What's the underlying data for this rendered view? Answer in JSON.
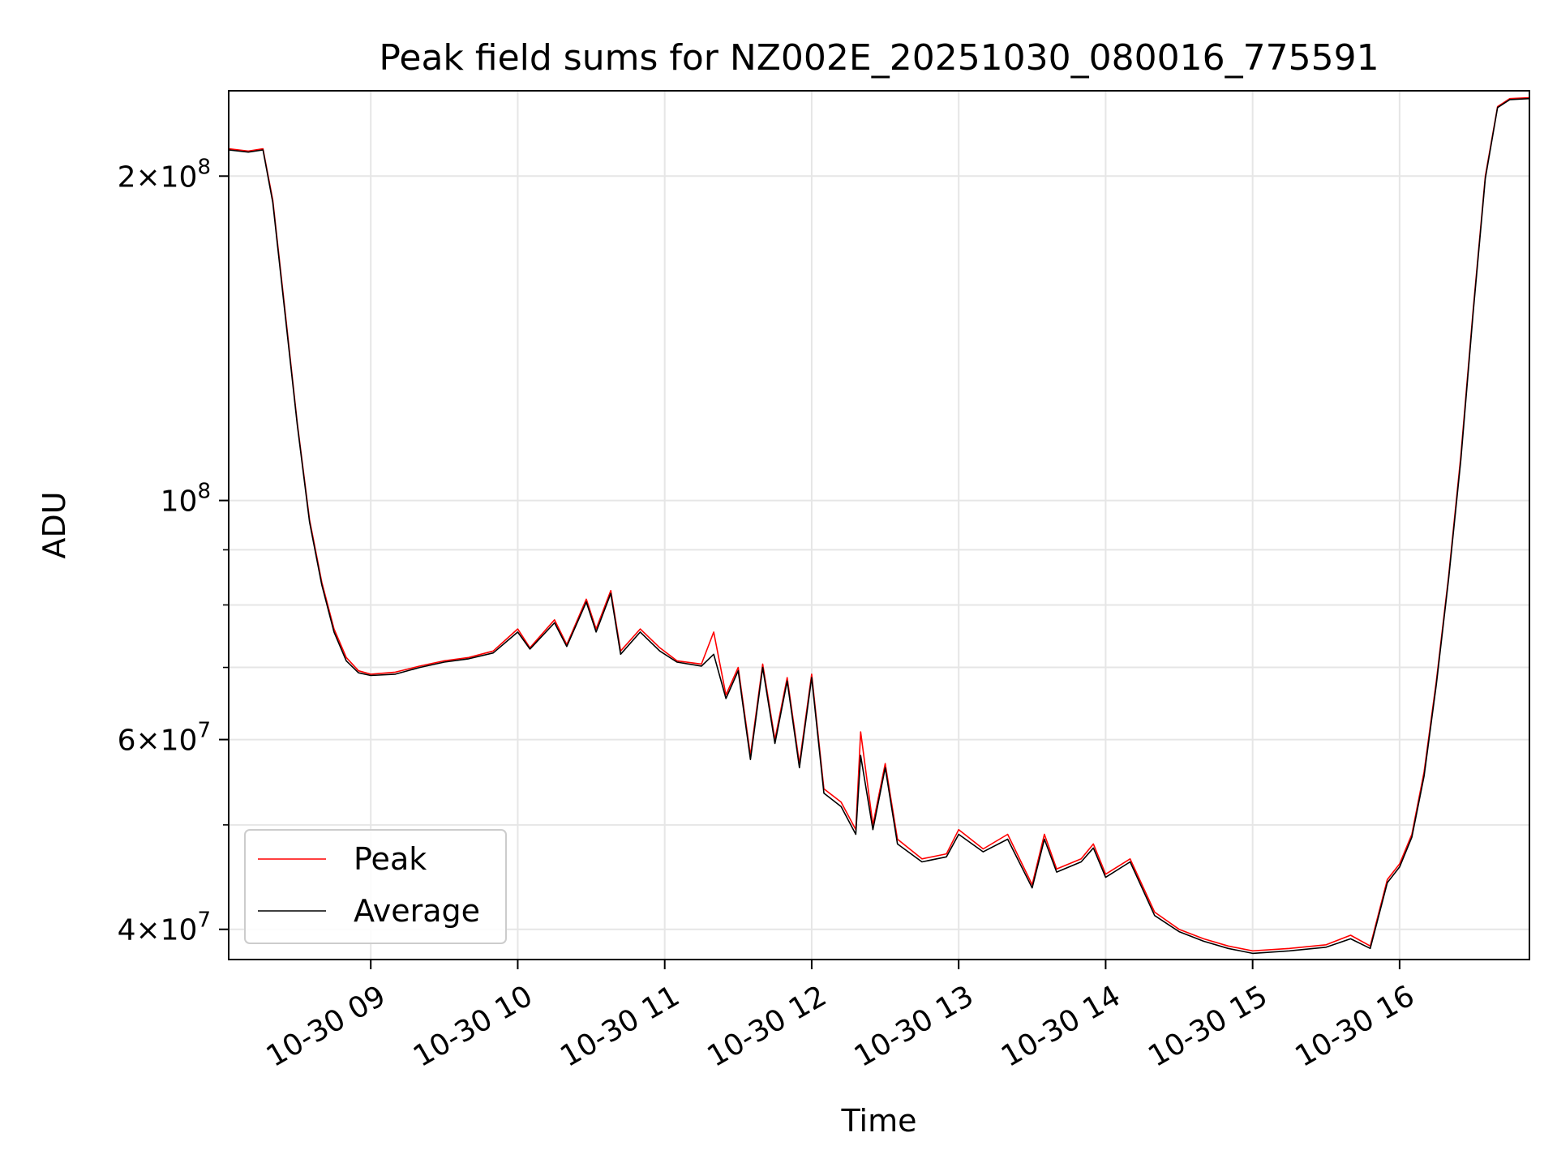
{
  "chart_data": {
    "type": "line",
    "title": "Peak field sums for NZ002E_20251030_080016_775591",
    "xlabel": "Time",
    "ylabel": "ADU",
    "x_axis": {
      "kind": "datetime",
      "range": [
        "2025-10-30T08:02:00",
        "2025-10-30T16:53:00"
      ],
      "ticks": [
        {
          "value": "2025-10-30T09:00",
          "label": "10-30 09"
        },
        {
          "value": "2025-10-30T10:00",
          "label": "10-30 10"
        },
        {
          "value": "2025-10-30T11:00",
          "label": "10-30 11"
        },
        {
          "value": "2025-10-30T12:00",
          "label": "10-30 12"
        },
        {
          "value": "2025-10-30T13:00",
          "label": "10-30 13"
        },
        {
          "value": "2025-10-30T14:00",
          "label": "10-30 14"
        },
        {
          "value": "2025-10-30T15:00",
          "label": "10-30 15"
        },
        {
          "value": "2025-10-30T16:00",
          "label": "10-30 16"
        }
      ]
    },
    "y_axis": {
      "scale": "log",
      "range": [
        37500000,
        240000000
      ],
      "major_ticks": [
        {
          "value": 40000000,
          "label_base": "4×10",
          "label_exp": "7"
        },
        {
          "value": 60000000,
          "label_base": "6×10",
          "label_exp": "7"
        },
        {
          "value": 100000000,
          "label_base": "10",
          "label_exp": "8"
        },
        {
          "value": 200000000,
          "label_base": "2×10",
          "label_exp": "8"
        }
      ],
      "minor_ticks": [
        50000000,
        70000000,
        80000000,
        90000000
      ]
    },
    "grid": true,
    "legend_position": "lower-left",
    "series": [
      {
        "name": "Peak",
        "color": "#ff0000",
        "points": [
          [
            "2025-10-30T08:02",
            212000000
          ],
          [
            "2025-10-30T08:10",
            211000000
          ],
          [
            "2025-10-30T08:16",
            212000000
          ],
          [
            "2025-10-30T08:20",
            190000000
          ],
          [
            "2025-10-30T08:25",
            150000000
          ],
          [
            "2025-10-30T08:30",
            118000000
          ],
          [
            "2025-10-30T08:35",
            96000000
          ],
          [
            "2025-10-30T08:40",
            84000000
          ],
          [
            "2025-10-30T08:45",
            76000000
          ],
          [
            "2025-10-30T08:50",
            71500000
          ],
          [
            "2025-10-30T08:55",
            69500000
          ],
          [
            "2025-10-30T09:00",
            69000000
          ],
          [
            "2025-10-30T09:10",
            69300000
          ],
          [
            "2025-10-30T09:20",
            70200000
          ],
          [
            "2025-10-30T09:30",
            71000000
          ],
          [
            "2025-10-30T09:40",
            71500000
          ],
          [
            "2025-10-30T09:50",
            72500000
          ],
          [
            "2025-10-30T10:00",
            76000000
          ],
          [
            "2025-10-30T10:05",
            73000000
          ],
          [
            "2025-10-30T10:15",
            77500000
          ],
          [
            "2025-10-30T10:20",
            73500000
          ],
          [
            "2025-10-30T10:28",
            81000000
          ],
          [
            "2025-10-30T10:32",
            76000000
          ],
          [
            "2025-10-30T10:38",
            82500000
          ],
          [
            "2025-10-30T10:42",
            72500000
          ],
          [
            "2025-10-30T10:50",
            76000000
          ],
          [
            "2025-10-30T10:58",
            73000000
          ],
          [
            "2025-10-30T11:05",
            71000000
          ],
          [
            "2025-10-30T11:15",
            70500000
          ],
          [
            "2025-10-30T11:20",
            75500000
          ],
          [
            "2025-10-30T11:25",
            66000000
          ],
          [
            "2025-10-30T11:30",
            70000000
          ],
          [
            "2025-10-30T11:35",
            58000000
          ],
          [
            "2025-10-30T11:40",
            70500000
          ],
          [
            "2025-10-30T11:45",
            60000000
          ],
          [
            "2025-10-30T11:50",
            68500000
          ],
          [
            "2025-10-30T11:55",
            57000000
          ],
          [
            "2025-10-30T12:00",
            69000000
          ],
          [
            "2025-10-30T12:05",
            54000000
          ],
          [
            "2025-10-30T12:12",
            52500000
          ],
          [
            "2025-10-30T12:18",
            49500000
          ],
          [
            "2025-10-30T12:20",
            61000000
          ],
          [
            "2025-10-30T12:25",
            50000000
          ],
          [
            "2025-10-30T12:30",
            57000000
          ],
          [
            "2025-10-30T12:35",
            48500000
          ],
          [
            "2025-10-30T12:45",
            46500000
          ],
          [
            "2025-10-30T12:55",
            47000000
          ],
          [
            "2025-10-30T13:00",
            49500000
          ],
          [
            "2025-10-30T13:10",
            47500000
          ],
          [
            "2025-10-30T13:20",
            49000000
          ],
          [
            "2025-10-30T13:30",
            44000000
          ],
          [
            "2025-10-30T13:35",
            49000000
          ],
          [
            "2025-10-30T13:40",
            45500000
          ],
          [
            "2025-10-30T13:50",
            46500000
          ],
          [
            "2025-10-30T13:55",
            48000000
          ],
          [
            "2025-10-30T14:00",
            45000000
          ],
          [
            "2025-10-30T14:10",
            46500000
          ],
          [
            "2025-10-30T14:20",
            41500000
          ],
          [
            "2025-10-30T14:30",
            40000000
          ],
          [
            "2025-10-30T14:40",
            39200000
          ],
          [
            "2025-10-30T14:50",
            38600000
          ],
          [
            "2025-10-30T15:00",
            38200000
          ],
          [
            "2025-10-30T15:15",
            38400000
          ],
          [
            "2025-10-30T15:30",
            38700000
          ],
          [
            "2025-10-30T15:40",
            39500000
          ],
          [
            "2025-10-30T15:48",
            38600000
          ],
          [
            "2025-10-30T15:55",
            44500000
          ],
          [
            "2025-10-30T16:00",
            46000000
          ],
          [
            "2025-10-30T16:05",
            49000000
          ],
          [
            "2025-10-30T16:10",
            56000000
          ],
          [
            "2025-10-30T16:15",
            68000000
          ],
          [
            "2025-10-30T16:20",
            85000000
          ],
          [
            "2025-10-30T16:25",
            110000000
          ],
          [
            "2025-10-30T16:30",
            150000000
          ],
          [
            "2025-10-30T16:35",
            200000000
          ],
          [
            "2025-10-30T16:40",
            232000000
          ],
          [
            "2025-10-30T16:45",
            236000000
          ],
          [
            "2025-10-30T16:53",
            236500000
          ]
        ]
      },
      {
        "name": "Average",
        "color": "#000000",
        "points": [
          [
            "2025-10-30T08:02",
            211500000
          ],
          [
            "2025-10-30T08:10",
            210500000
          ],
          [
            "2025-10-30T08:16",
            211500000
          ],
          [
            "2025-10-30T08:20",
            189000000
          ],
          [
            "2025-10-30T08:25",
            149000000
          ],
          [
            "2025-10-30T08:30",
            117500000
          ],
          [
            "2025-10-30T08:35",
            95500000
          ],
          [
            "2025-10-30T08:40",
            83500000
          ],
          [
            "2025-10-30T08:45",
            75500000
          ],
          [
            "2025-10-30T08:50",
            71000000
          ],
          [
            "2025-10-30T08:55",
            69200000
          ],
          [
            "2025-10-30T09:00",
            68800000
          ],
          [
            "2025-10-30T09:10",
            69000000
          ],
          [
            "2025-10-30T09:20",
            70000000
          ],
          [
            "2025-10-30T09:30",
            70800000
          ],
          [
            "2025-10-30T09:40",
            71300000
          ],
          [
            "2025-10-30T09:50",
            72200000
          ],
          [
            "2025-10-30T10:00",
            75500000
          ],
          [
            "2025-10-30T10:05",
            72800000
          ],
          [
            "2025-10-30T10:15",
            77000000
          ],
          [
            "2025-10-30T10:20",
            73200000
          ],
          [
            "2025-10-30T10:28",
            80500000
          ],
          [
            "2025-10-30T10:32",
            75500000
          ],
          [
            "2025-10-30T10:38",
            82000000
          ],
          [
            "2025-10-30T10:42",
            72000000
          ],
          [
            "2025-10-30T10:50",
            75500000
          ],
          [
            "2025-10-30T10:58",
            72500000
          ],
          [
            "2025-10-30T11:05",
            70800000
          ],
          [
            "2025-10-30T11:15",
            70200000
          ],
          [
            "2025-10-30T11:20",
            72000000
          ],
          [
            "2025-10-30T11:25",
            65500000
          ],
          [
            "2025-10-30T11:30",
            69500000
          ],
          [
            "2025-10-30T11:35",
            57500000
          ],
          [
            "2025-10-30T11:40",
            70000000
          ],
          [
            "2025-10-30T11:45",
            59500000
          ],
          [
            "2025-10-30T11:50",
            68000000
          ],
          [
            "2025-10-30T11:55",
            56500000
          ],
          [
            "2025-10-30T12:00",
            68500000
          ],
          [
            "2025-10-30T12:05",
            53500000
          ],
          [
            "2025-10-30T12:12",
            52000000
          ],
          [
            "2025-10-30T12:18",
            49000000
          ],
          [
            "2025-10-30T12:20",
            58000000
          ],
          [
            "2025-10-30T12:25",
            49500000
          ],
          [
            "2025-10-30T12:30",
            56500000
          ],
          [
            "2025-10-30T12:35",
            48000000
          ],
          [
            "2025-10-30T12:45",
            46200000
          ],
          [
            "2025-10-30T12:55",
            46700000
          ],
          [
            "2025-10-30T13:00",
            49000000
          ],
          [
            "2025-10-30T13:10",
            47200000
          ],
          [
            "2025-10-30T13:20",
            48500000
          ],
          [
            "2025-10-30T13:30",
            43700000
          ],
          [
            "2025-10-30T13:35",
            48500000
          ],
          [
            "2025-10-30T13:40",
            45200000
          ],
          [
            "2025-10-30T13:50",
            46200000
          ],
          [
            "2025-10-30T13:55",
            47600000
          ],
          [
            "2025-10-30T14:00",
            44700000
          ],
          [
            "2025-10-30T14:10",
            46200000
          ],
          [
            "2025-10-30T14:20",
            41200000
          ],
          [
            "2025-10-30T14:30",
            39800000
          ],
          [
            "2025-10-30T14:40",
            39000000
          ],
          [
            "2025-10-30T14:50",
            38400000
          ],
          [
            "2025-10-30T15:00",
            38000000
          ],
          [
            "2025-10-30T15:15",
            38200000
          ],
          [
            "2025-10-30T15:30",
            38500000
          ],
          [
            "2025-10-30T15:40",
            39200000
          ],
          [
            "2025-10-30T15:48",
            38400000
          ],
          [
            "2025-10-30T15:55",
            44200000
          ],
          [
            "2025-10-30T16:00",
            45700000
          ],
          [
            "2025-10-30T16:05",
            48700000
          ],
          [
            "2025-10-30T16:10",
            55500000
          ],
          [
            "2025-10-30T16:15",
            67500000
          ],
          [
            "2025-10-30T16:20",
            84500000
          ],
          [
            "2025-10-30T16:25",
            109000000
          ],
          [
            "2025-10-30T16:30",
            149000000
          ],
          [
            "2025-10-30T16:35",
            199000000
          ],
          [
            "2025-10-30T16:40",
            231500000
          ],
          [
            "2025-10-30T16:45",
            235500000
          ],
          [
            "2025-10-30T16:53",
            236000000
          ]
        ]
      }
    ]
  }
}
